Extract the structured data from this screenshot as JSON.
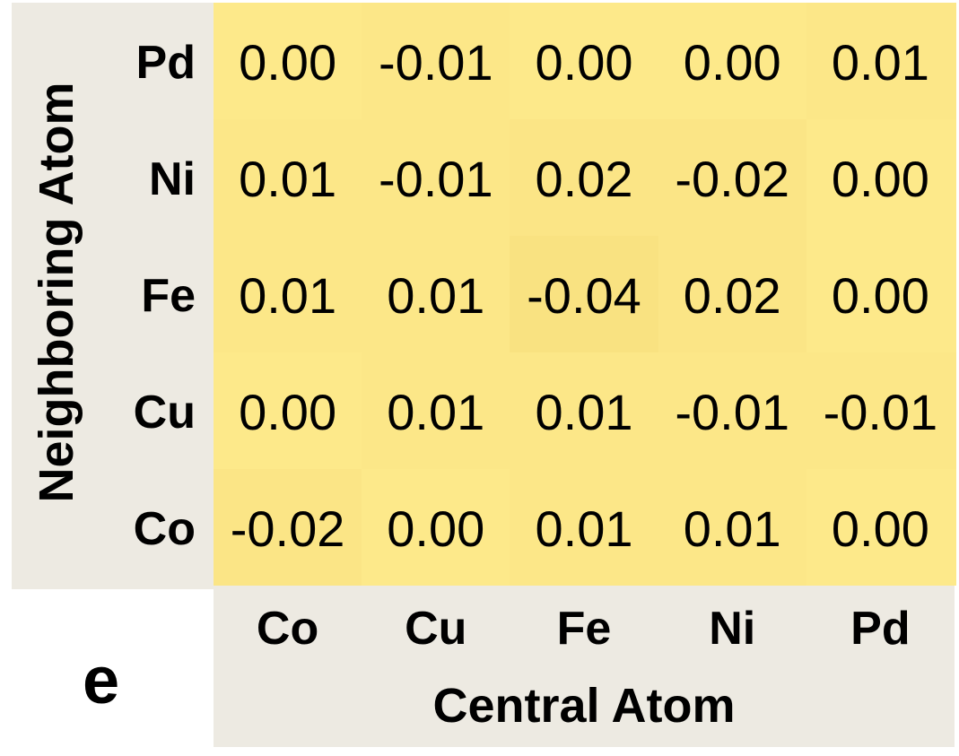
{
  "panel_label": "e",
  "chart_data": {
    "type": "heatmap",
    "xlabel": "Central Atom",
    "ylabel": "Neighboring Atom",
    "x_categories": [
      "Co",
      "Cu",
      "Fe",
      "Ni",
      "Pd"
    ],
    "y_categories": [
      "Pd",
      "Ni",
      "Fe",
      "Cu",
      "Co"
    ],
    "values": [
      [
        "0.00",
        "-0.01",
        "0.00",
        "0.00",
        "0.01"
      ],
      [
        "0.01",
        "-0.01",
        "0.02",
        "-0.02",
        "0.00"
      ],
      [
        "0.01",
        "0.01",
        "-0.04",
        "0.02",
        "0.00"
      ],
      [
        "0.00",
        "0.01",
        "0.01",
        "-0.01",
        "-0.01"
      ],
      [
        "-0.02",
        "0.00",
        "0.01",
        "0.01",
        "0.00"
      ]
    ],
    "colors": {
      "cell_base": "#fde98a",
      "panel_bg": "#edeae2"
    }
  }
}
